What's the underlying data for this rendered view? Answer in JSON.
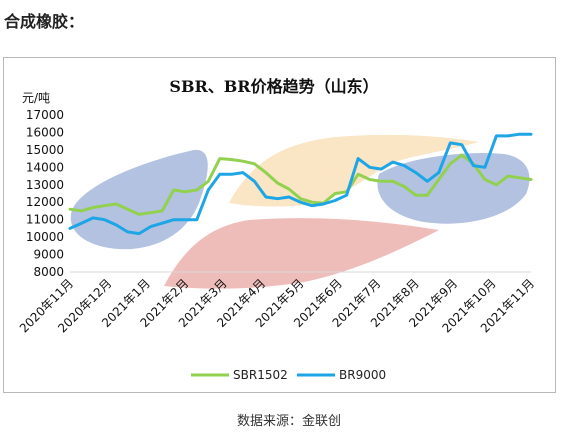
{
  "page": {
    "heading": "合成橡胶：",
    "source": "数据来源：金联创"
  },
  "chart_data": {
    "type": "line",
    "title": "SBR、BR价格趋势（山东）",
    "ylabel": "元/吨",
    "ylim": [
      8000,
      17000
    ],
    "yticks": [
      8000,
      9000,
      10000,
      11000,
      12000,
      13000,
      14000,
      15000,
      16000,
      17000
    ],
    "categories": [
      "2020年11月",
      "2020年12月",
      "2021年1月",
      "2021年2月",
      "2021年3月",
      "2021年4月",
      "2021年5月",
      "2021年6月",
      "2021年7月",
      "2021年8月",
      "2021年9月",
      "2021年10月",
      "2021年11月"
    ],
    "x": [
      0,
      0.3,
      0.6,
      0.9,
      1.2,
      1.5,
      1.8,
      2.1,
      2.4,
      2.7,
      3.0,
      3.3,
      3.6,
      3.9,
      4.2,
      4.5,
      4.8,
      5.1,
      5.4,
      5.7,
      6.0,
      6.3,
      6.6,
      6.9,
      7.2,
      7.5,
      7.8,
      8.1,
      8.4,
      8.7,
      9.0,
      9.3,
      9.6,
      9.9,
      10.2,
      10.5,
      10.8,
      11.1,
      11.4,
      11.7,
      12.0
    ],
    "grid": false,
    "legend": "bottom",
    "series": [
      {
        "name": "SBR1502",
        "color": "#92d050",
        "values": [
          11600,
          11500,
          11700,
          11800,
          11900,
          11600,
          11300,
          11400,
          11500,
          12700,
          12600,
          12700,
          13200,
          14500,
          14450,
          14350,
          14200,
          13700,
          13100,
          12750,
          12200,
          12000,
          11950,
          12500,
          12600,
          13600,
          13300,
          13200,
          13200,
          12900,
          12400,
          12400,
          13300,
          14200,
          14700,
          14200,
          13300,
          13000,
          13500,
          13400,
          13300
        ]
      },
      {
        "name": "BR9000",
        "color": "#1ea5e6",
        "values": [
          10500,
          10800,
          11100,
          11000,
          10700,
          10300,
          10200,
          10600,
          10800,
          11000,
          11000,
          11000,
          12700,
          13600,
          13600,
          13700,
          13200,
          12300,
          12200,
          12300,
          12000,
          11800,
          11900,
          12100,
          12400,
          14500,
          14000,
          13900,
          14300,
          14100,
          13700,
          13200,
          13700,
          15400,
          15300,
          14100,
          14000,
          15800,
          15800,
          15900,
          15900
        ]
      }
    ]
  }
}
